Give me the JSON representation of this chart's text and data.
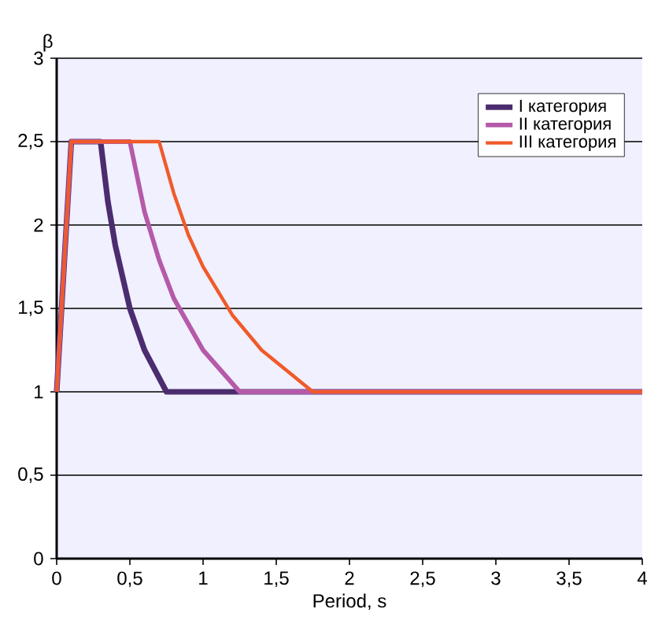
{
  "chart_data": {
    "type": "line",
    "xlabel": "Period, s",
    "ylabel": "β",
    "series": [
      {
        "name": "I категория",
        "color": "#4b2c6e",
        "x": [
          0,
          0.1,
          0.3,
          0.35,
          0.4,
          0.5,
          0.6,
          0.75,
          4
        ],
        "values": [
          1,
          2.5,
          2.5,
          2.14,
          1.88,
          1.5,
          1.25,
          1.0,
          1.0
        ]
      },
      {
        "name": "II категория",
        "color": "#b55aa8",
        "x": [
          0,
          0.1,
          0.5,
          0.6,
          0.7,
          0.8,
          1.0,
          1.25,
          4
        ],
        "values": [
          1,
          2.5,
          2.5,
          2.08,
          1.79,
          1.56,
          1.25,
          1.0,
          1.0
        ]
      },
      {
        "name": "III категория",
        "color": "#f05a2a",
        "x": [
          0,
          0.1,
          0.7,
          0.8,
          0.9,
          1.0,
          1.2,
          1.4,
          1.75,
          4
        ],
        "values": [
          1,
          2.5,
          2.5,
          2.19,
          1.94,
          1.75,
          1.46,
          1.25,
          1.0,
          1.0
        ]
      }
    ],
    "xlim": [
      0,
      4
    ],
    "ylim": [
      0,
      3
    ],
    "xticks": [
      0,
      {
        "value": 0.5,
        "label": "0,5"
      },
      1,
      {
        "value": 1.5,
        "label": "1,5"
      },
      2,
      {
        "value": 2.5,
        "label": "2,5"
      },
      3,
      {
        "value": 3.5,
        "label": "3,5"
      },
      4
    ],
    "yticks": [
      0,
      {
        "value": 0.5,
        "label": "0,5"
      },
      1,
      {
        "value": 1.5,
        "label": "1,5"
      },
      2,
      {
        "value": 2.5,
        "label": "2,5"
      },
      3
    ],
    "grid": "y",
    "legend": "top right",
    "marker": "none",
    "line_style": "solid"
  }
}
